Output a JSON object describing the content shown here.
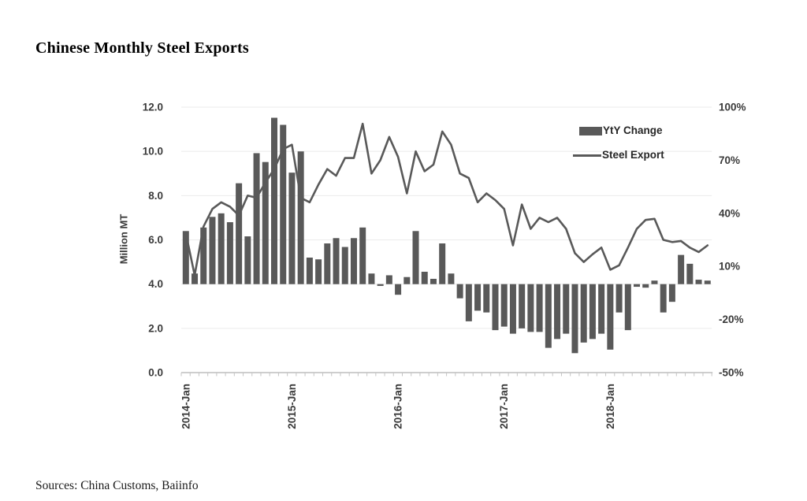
{
  "header": {
    "title": "Chinese Monthly Steel Exports"
  },
  "footer": {
    "sources": "Sources: China Customs, Baiinfo"
  },
  "colors": {
    "bar": "#595959",
    "line": "#595959",
    "gridline": "#ebebeb",
    "axis_line": "#b0b0b0",
    "tick": "#c4c4c4",
    "axis_text": "#3a3a3a"
  },
  "chart_data": {
    "type": "bar",
    "combo": "bar+line dual axis",
    "title": "Chinese Monthly Steel Exports",
    "xlabel": "",
    "ylabel_left": "Million MT",
    "legend_position": "top-right-inside",
    "grid": "horizontal, faint",
    "left_axis": {
      "label": "Million MT",
      "min": 0,
      "max": 12,
      "tick_labels": [
        "12.0",
        "10.0",
        "8.0",
        "6.0",
        "4.0",
        "2.0",
        "0.0"
      ],
      "tick_values": [
        12,
        10,
        8,
        6,
        4,
        2,
        0
      ]
    },
    "right_axis": {
      "unit": "%",
      "min": -50,
      "max": 100,
      "tick_labels": [
        "100%",
        "70%",
        "40%",
        "10%",
        "-20%",
        "-50%"
      ],
      "tick_values": [
        100,
        70,
        40,
        10,
        -20,
        -50
      ]
    },
    "x_axis": {
      "visible_tick_labels": [
        "2014-Jan",
        "2015-Jan",
        "2016-Jan",
        "2017-Jan",
        "2018-Jan"
      ],
      "label_month_indexes": [
        0,
        12,
        24,
        36,
        48
      ],
      "months_total": 60
    },
    "categories": [
      "2014-Jan",
      "2014-Feb",
      "2014-Mar",
      "2014-Apr",
      "2014-May",
      "2014-Jun",
      "2014-Jul",
      "2014-Aug",
      "2014-Sep",
      "2014-Oct",
      "2014-Nov",
      "2014-Dec",
      "2015-Jan",
      "2015-Feb",
      "2015-Mar",
      "2015-Apr",
      "2015-May",
      "2015-Jun",
      "2015-Jul",
      "2015-Aug",
      "2015-Sep",
      "2015-Oct",
      "2015-Nov",
      "2015-Dec",
      "2016-Jan",
      "2016-Feb",
      "2016-Mar",
      "2016-Apr",
      "2016-May",
      "2016-Jun",
      "2016-Jul",
      "2016-Aug",
      "2016-Sep",
      "2016-Oct",
      "2016-Nov",
      "2016-Dec",
      "2017-Jan",
      "2017-Feb",
      "2017-Mar",
      "2017-Apr",
      "2017-May",
      "2017-Jun",
      "2017-Jul",
      "2017-Aug",
      "2017-Sep",
      "2017-Oct",
      "2017-Nov",
      "2017-Dec",
      "2018-Jan",
      "2018-Feb",
      "2018-Mar",
      "2018-Apr",
      "2018-May",
      "2018-Jun",
      "2018-Jul",
      "2018-Aug",
      "2018-Sep",
      "2018-Oct",
      "2018-Nov",
      "2018-Dec"
    ],
    "series": [
      {
        "name": "YtY Change",
        "type": "bar",
        "axis": "right",
        "unit": "%",
        "values": [
          30,
          6,
          32,
          38,
          40,
          35,
          57,
          27,
          74,
          69,
          94,
          90,
          63,
          75,
          15,
          14,
          23,
          26,
          21,
          26,
          32,
          6,
          -1,
          5,
          -6,
          4,
          30,
          7,
          3,
          23,
          6,
          -8,
          -21,
          -15,
          -16,
          -26,
          -24,
          -28,
          -25,
          -27,
          -27,
          -36,
          -31,
          -28,
          -39,
          -33,
          -31,
          -28,
          -37,
          -16,
          -26,
          -1.5,
          -2,
          2,
          -16,
          -10,
          16.5,
          11.5,
          2.5,
          2
        ]
      },
      {
        "name": "Steel Export",
        "type": "line",
        "axis": "left",
        "unit": "Million MT",
        "values": [
          6.3,
          4.4,
          6.6,
          7.4,
          7.7,
          7.5,
          7.1,
          8.0,
          7.9,
          8.6,
          9.2,
          10.1,
          10.3,
          7.9,
          7.7,
          8.5,
          9.2,
          8.9,
          9.7,
          9.7,
          11.25,
          9.0,
          9.6,
          10.65,
          9.75,
          8.1,
          10.0,
          9.1,
          9.4,
          10.9,
          10.3,
          9.0,
          8.8,
          7.7,
          8.1,
          7.8,
          7.4,
          5.75,
          7.6,
          6.5,
          7.0,
          6.8,
          7.0,
          6.5,
          5.4,
          5.0,
          5.35,
          5.65,
          4.65,
          4.85,
          5.65,
          6.5,
          6.9,
          6.95,
          6.0,
          5.9,
          5.95,
          5.65,
          5.45,
          5.75
        ]
      }
    ]
  }
}
